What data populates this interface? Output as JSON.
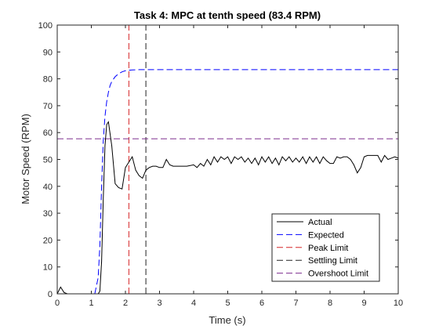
{
  "chart_data": {
    "type": "line",
    "title": "Task 4: MPC at tenth speed (83.4 RPM)",
    "xlabel": "Time (s)",
    "ylabel": "Motor Speed (RPM)",
    "xlim": [
      0,
      10
    ],
    "ylim": [
      0,
      100
    ],
    "xticks": [
      0,
      1,
      2,
      3,
      4,
      5,
      6,
      7,
      8,
      9,
      10
    ],
    "yticks": [
      0,
      10,
      20,
      30,
      40,
      50,
      60,
      70,
      80,
      90,
      100
    ],
    "grid": false,
    "legend_position": "bottom-right",
    "series": [
      {
        "name": "Actual",
        "color": "#000000",
        "style": "solid",
        "x": [
          0,
          0.1,
          0.2,
          0.3,
          0.5,
          0.8,
          1.0,
          1.1,
          1.2,
          1.25,
          1.3,
          1.35,
          1.4,
          1.45,
          1.5,
          1.6,
          1.7,
          1.8,
          1.9,
          2.0,
          2.1,
          2.2,
          2.3,
          2.4,
          2.5,
          2.6,
          2.7,
          2.8,
          2.9,
          3.0,
          3.1,
          3.2,
          3.3,
          3.4,
          3.6,
          3.8,
          4.0,
          4.1,
          4.2,
          4.3,
          4.4,
          4.5,
          4.6,
          4.7,
          4.8,
          4.9,
          5.0,
          5.1,
          5.2,
          5.3,
          5.4,
          5.5,
          5.6,
          5.7,
          5.8,
          5.9,
          6.0,
          6.1,
          6.2,
          6.3,
          6.4,
          6.5,
          6.6,
          6.7,
          6.8,
          6.9,
          7.0,
          7.1,
          7.2,
          7.3,
          7.4,
          7.5,
          7.6,
          7.7,
          7.8,
          7.9,
          8.0,
          8.1,
          8.2,
          8.3,
          8.4,
          8.5,
          8.6,
          8.7,
          8.8,
          8.9,
          9.0,
          9.1,
          9.2,
          9.3,
          9.4,
          9.5,
          9.6,
          9.7,
          9.8,
          9.9,
          10.0
        ],
        "y": [
          0,
          2.5,
          0.5,
          0,
          0,
          0,
          0,
          0,
          0,
          1,
          12,
          35,
          55,
          63,
          64,
          55,
          41,
          39.5,
          39,
          47,
          49,
          51,
          46,
          44,
          43,
          46,
          47,
          47.5,
          47.5,
          47,
          47,
          50,
          48,
          47.5,
          47.5,
          47.5,
          48,
          47,
          48.5,
          47.5,
          50,
          48,
          51,
          49,
          51,
          50,
          51,
          48.5,
          51,
          50,
          51,
          49,
          50.5,
          48.5,
          50.5,
          48,
          51,
          49,
          51,
          48.5,
          50.5,
          48,
          51,
          49.5,
          51,
          49,
          50.5,
          49,
          51,
          48.5,
          51,
          49,
          51,
          48.5,
          51,
          49.5,
          48.5,
          48.5,
          51,
          50.5,
          51,
          51,
          50,
          48,
          45,
          47,
          51,
          51.5,
          51.5,
          51.5,
          51.5,
          49,
          51.5,
          50,
          50.5,
          51,
          50.5
        ]
      },
      {
        "name": "Expected",
        "color": "#0000ff",
        "style": "dash",
        "x": [
          0,
          1.0,
          1.1,
          1.2,
          1.25,
          1.3,
          1.35,
          1.4,
          1.45,
          1.5,
          1.55,
          1.6,
          1.7,
          1.8,
          1.9,
          2.0,
          2.1,
          2.2,
          2.4,
          2.6,
          3.0,
          4.0,
          5.0,
          6.0,
          7.0,
          8.0,
          9.0,
          10.0
        ],
        "y": [
          0,
          0,
          0,
          6,
          18,
          40,
          57,
          66,
          71.5,
          75,
          77.5,
          79,
          80.8,
          81.9,
          82.6,
          83.0,
          83.2,
          83.3,
          83.4,
          83.4,
          83.4,
          83.4,
          83.4,
          83.4,
          83.4,
          83.4,
          83.4,
          83.4
        ]
      },
      {
        "name": "Peak Limit",
        "color": "#d62728",
        "style": "dash",
        "orientation": "vertical",
        "x": [
          2.1,
          2.1
        ],
        "y": [
          0,
          100
        ]
      },
      {
        "name": "Settling Limit",
        "color": "#222222",
        "style": "dash",
        "orientation": "vertical",
        "x": [
          2.6,
          2.6
        ],
        "y": [
          0,
          100
        ]
      },
      {
        "name": "Overshoot Limit",
        "color": "#7e2f8e",
        "style": "dash",
        "orientation": "horizontal",
        "x": [
          0,
          10
        ],
        "y": [
          57.7,
          57.7
        ]
      }
    ]
  }
}
